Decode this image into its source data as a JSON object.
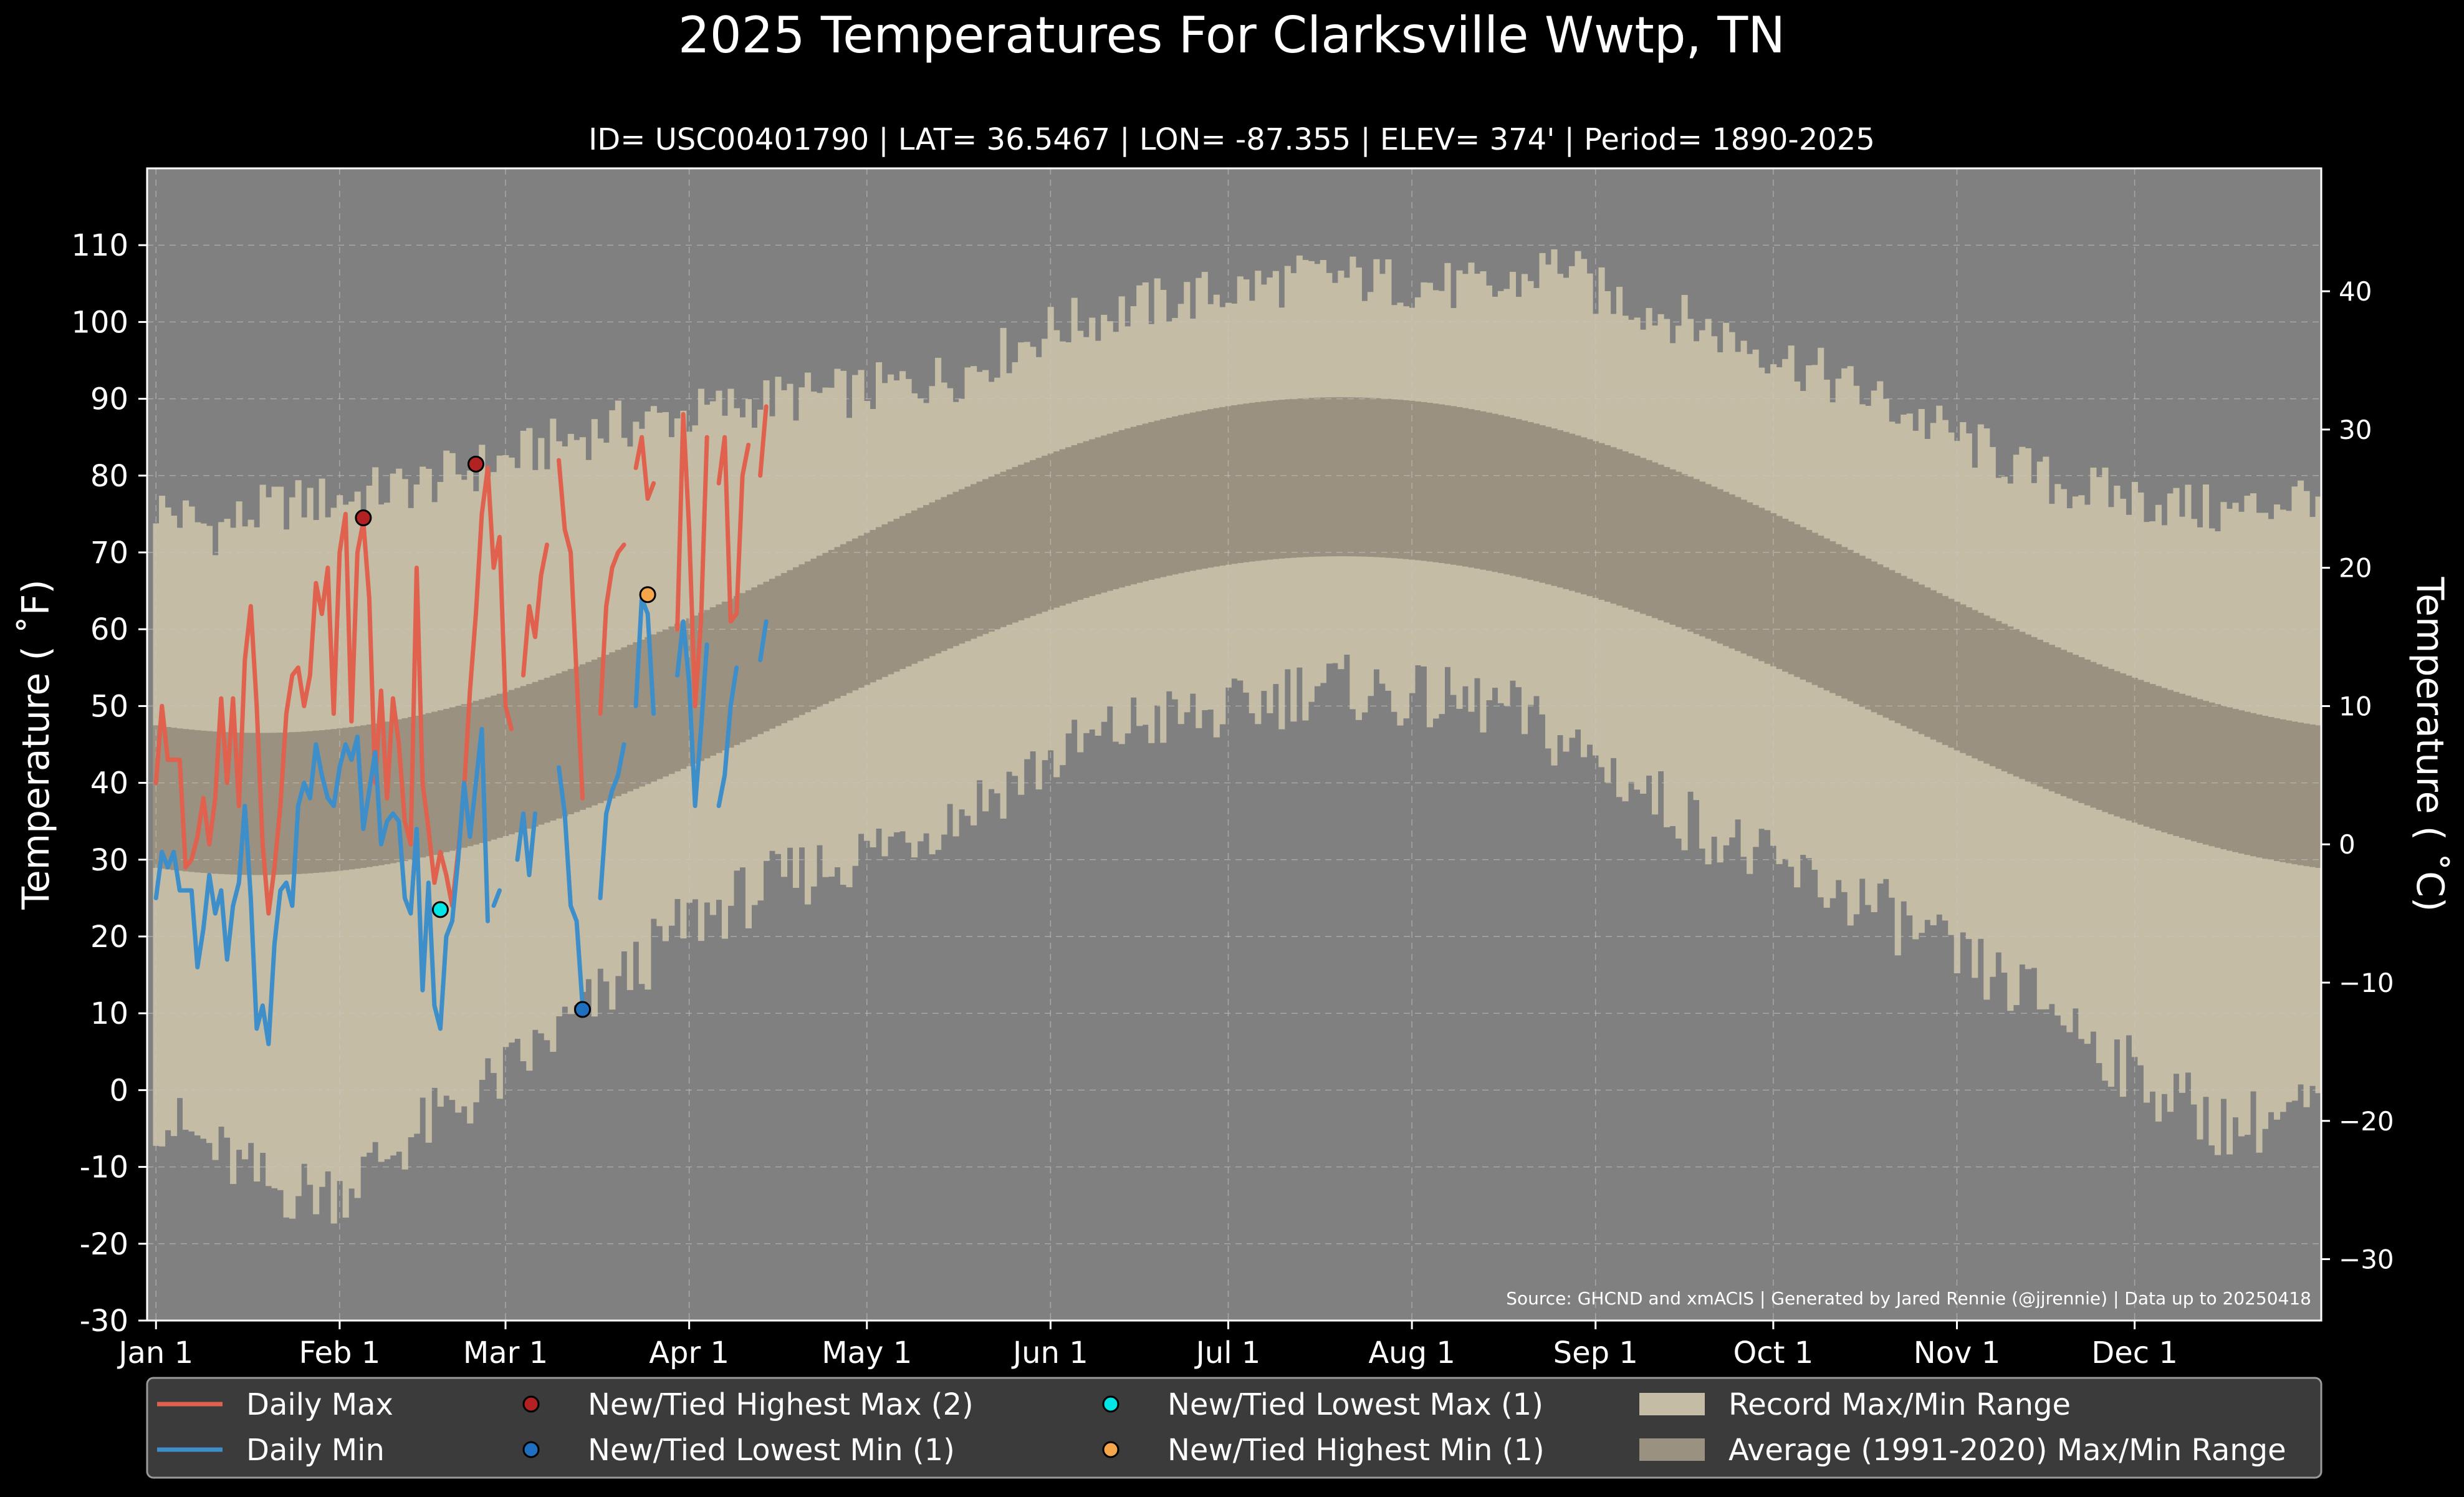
{
  "chart_data": {
    "type": "line",
    "title": "2025 Temperatures For Clarksville Wwtp, TN",
    "subtitle": "ID= USC00401790 | LAT= 36.5467 | LON= -87.355 | ELEV= 374' | Period= 1890-2025",
    "ylabel": "Temperature ($^\\circ$F)",
    "ylabel_display": "Temperature ( ˚F)",
    "ylabel_right": "Temperature ( ˚C)",
    "source": "Source: GHCND and xmACIS | Generated by Jared Rennie (@jjrennie) | Data up to 20250418",
    "ylim": [
      -30,
      120
    ],
    "ylim_right_c": [
      -34.44,
      48.89
    ],
    "xlim_day": [
      -1.5,
      365.5
    ],
    "grid": true,
    "legend_position": "bottom",
    "y_ticks": [
      -30,
      -20,
      -10,
      0,
      10,
      20,
      30,
      40,
      50,
      60,
      70,
      80,
      90,
      100,
      110
    ],
    "y_tick_labels": [
      "-30",
      "-20",
      "-10",
      "0",
      "10",
      "20",
      "30",
      "40",
      "50",
      "60",
      "70",
      "80",
      "90",
      "100",
      "110"
    ],
    "y_right_ticks": [
      -30,
      -20,
      -10,
      0,
      10,
      20,
      30,
      40
    ],
    "y_right_tick_labels": [
      "−30",
      "−20",
      "−10",
      "0",
      "10",
      "20",
      "30",
      "40"
    ],
    "x_ticks": [
      {
        "label": "Jan 1",
        "day": 0
      },
      {
        "label": "Feb 1",
        "day": 31
      },
      {
        "label": "Mar 1",
        "day": 59
      },
      {
        "label": "Apr 1",
        "day": 90
      },
      {
        "label": "May 1",
        "day": 120
      },
      {
        "label": "Jun 1",
        "day": 151
      },
      {
        "label": "Jul 1",
        "day": 181
      },
      {
        "label": "Aug 1",
        "day": 212
      },
      {
        "label": "Sep 1",
        "day": 243
      },
      {
        "label": "Oct 1",
        "day": 273
      },
      {
        "label": "Nov 1",
        "day": 304
      },
      {
        "label": "Dec 1",
        "day": 334
      }
    ],
    "record_max_anchors": {
      "day": [
        0,
        10,
        20,
        31,
        45,
        59,
        75,
        90,
        105,
        120,
        135,
        151,
        166,
        181,
        196,
        212,
        227,
        237,
        243,
        255,
        273,
        290,
        304,
        320,
        334,
        350,
        365
      ],
      "value": [
        76,
        73,
        76,
        77,
        79,
        82,
        86,
        88,
        90,
        91,
        93,
        99,
        102,
        104,
        106,
        105,
        104,
        108,
        104,
        101,
        96,
        90,
        85,
        79,
        77,
        75,
        78
      ]
    },
    "record_min_anchors": {
      "day": [
        0,
        10,
        20,
        31,
        45,
        59,
        75,
        90,
        105,
        120,
        135,
        151,
        166,
        181,
        196,
        212,
        227,
        243,
        255,
        273,
        290,
        304,
        320,
        334,
        350,
        365
      ],
      "value": [
        -3,
        -8,
        -13,
        -13,
        -5,
        2,
        12,
        22,
        27,
        31,
        36,
        43,
        48,
        49,
        53,
        51,
        50,
        43,
        37,
        29,
        24,
        17,
        11,
        2,
        -5,
        -2
      ]
    },
    "normal_max_peak": {
      "winter_min": 46.5,
      "summer_max": 90.2,
      "winter_day": 14,
      "summer_day": 200
    },
    "normal_min_peak": {
      "winter_min": 28,
      "summer_max": 69.5,
      "winter_day": 20,
      "summer_day": 200
    },
    "series": [
      {
        "name": "Daily Max",
        "color": "#e0614e",
        "segments": [
          {
            "start_day": 0,
            "values": [
              40,
              50,
              43,
              43,
              43,
              29,
              30,
              33,
              38,
              32,
              38,
              51,
              40,
              51,
              37,
              56,
              63,
              50,
              32,
              23,
              29,
              37,
              49,
              54,
              55,
              50,
              54,
              66,
              62,
              68,
              49,
              70,
              75,
              48,
              70,
              74,
              64,
              40,
              52,
              38,
              51,
              45,
              35,
              32,
              68,
              40,
              34,
              27,
              31,
              28,
              24,
              31,
              39,
              52,
              62,
              75,
              81,
              68,
              72,
              50,
              47
            ]
          },
          {
            "start_day": 62,
            "values": [
              54,
              63,
              59,
              67,
              71
            ]
          },
          {
            "start_day": 68,
            "values": [
              82,
              73,
              70,
              54,
              38
            ]
          },
          {
            "start_day": 75,
            "values": [
              49,
              63,
              68,
              70,
              71
            ]
          },
          {
            "start_day": 81,
            "values": [
              81,
              85,
              77,
              79
            ]
          },
          {
            "start_day": 88,
            "values": [
              60,
              88,
              73,
              50,
              61,
              85
            ]
          },
          {
            "start_day": 95,
            "values": [
              79,
              85,
              61,
              62,
              80,
              84
            ]
          },
          {
            "start_day": 102,
            "values": [
              80,
              89
            ]
          }
        ]
      },
      {
        "name": "Daily Min",
        "color": "#3d8ec9",
        "segments": [
          {
            "start_day": 0,
            "values": [
              25,
              31,
              29,
              31,
              26,
              26,
              26,
              16,
              21,
              28,
              23,
              26,
              17,
              24,
              27,
              37,
              25,
              8,
              11,
              6,
              19,
              26,
              27,
              24,
              37,
              40,
              38,
              45,
              41,
              38,
              37,
              42,
              45,
              43,
              46,
              34,
              39,
              44,
              32,
              35,
              36,
              35,
              25,
              23,
              34,
              13,
              27,
              11,
              8,
              20,
              22,
              30,
              40,
              33,
              40,
              47,
              22
            ]
          },
          {
            "start_day": 57,
            "values": [
              24,
              26
            ]
          },
          {
            "start_day": 61,
            "values": [
              30,
              36,
              28,
              36
            ]
          },
          {
            "start_day": 68,
            "values": [
              42,
              36,
              24,
              22,
              11
            ]
          },
          {
            "start_day": 75,
            "values": [
              25,
              36,
              39,
              41,
              45
            ]
          },
          {
            "start_day": 81,
            "values": [
              50,
              64,
              62,
              49
            ]
          },
          {
            "start_day": 88,
            "values": [
              54,
              61,
              53,
              37,
              47,
              58
            ]
          },
          {
            "start_day": 95,
            "values": [
              37,
              41,
              50,
              55
            ]
          },
          {
            "start_day": 102,
            "values": [
              56,
              61
            ]
          }
        ]
      }
    ],
    "record_markers": [
      {
        "name": "New/Tied Highest Max",
        "color": "#b22222",
        "points": [
          {
            "day": 35,
            "value": 74.5
          },
          {
            "day": 54,
            "value": 81.5
          }
        ]
      },
      {
        "name": "New/Tied Lowest Min",
        "color": "#1e6fbf",
        "points": [
          {
            "day": 72,
            "value": 10.5
          }
        ]
      },
      {
        "name": "New/Tied Lowest Max",
        "color": "#00e5e5",
        "points": [
          {
            "day": 48,
            "value": 23.5
          }
        ]
      },
      {
        "name": "New/Tied Highest Min",
        "color": "#f5a54a",
        "points": [
          {
            "day": 83,
            "value": 64.5
          }
        ]
      }
    ],
    "legend": [
      {
        "label": "Daily Max",
        "kind": "line",
        "color": "#e0614e"
      },
      {
        "label": "Daily Min",
        "kind": "line",
        "color": "#3d8ec9"
      },
      {
        "label": "New/Tied Highest Max (2)",
        "kind": "dot",
        "color": "#b22222"
      },
      {
        "label": "New/Tied Lowest Min (1)",
        "kind": "dot",
        "color": "#1e6fbf"
      },
      {
        "label": "New/Tied Lowest Max (1)",
        "kind": "dot",
        "color": "#00e5e5"
      },
      {
        "label": "New/Tied Highest Min (1)",
        "kind": "dot",
        "color": "#f5a54a"
      },
      {
        "label": "Record Max/Min Range",
        "kind": "patch",
        "color": "#c4bca4"
      },
      {
        "label": "Average (1991-2020) Max/Min Range",
        "kind": "patch",
        "color": "#9a9180"
      }
    ],
    "colors": {
      "background": "#000000",
      "plot_background": "#808080",
      "record_band": "#c4bca4",
      "normal_band": "#9a9180",
      "legend_background": "#3b3b3b",
      "grid": "#c8c8c8",
      "text": "#ffffff"
    }
  }
}
